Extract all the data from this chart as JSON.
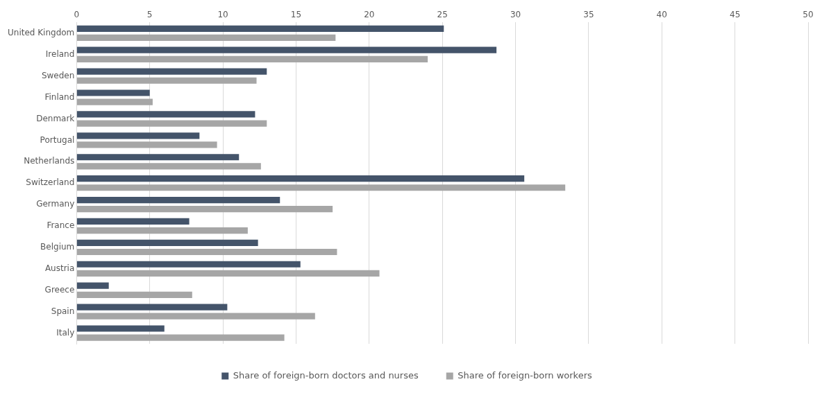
{
  "chart_data": {
    "type": "bar",
    "orientation": "horizontal",
    "categories": [
      "United Kingdom",
      "Ireland",
      "Sweden",
      "Finland",
      "Denmark",
      "Portugal",
      "Netherlands",
      "Switzerland",
      "Germany",
      "France",
      "Belgium",
      "Austria",
      "Greece",
      "Spain",
      "Italy"
    ],
    "series": [
      {
        "name": "Share of foreign-born doctors and nurses",
        "color": "#44546a",
        "values": [
          25.1,
          28.7,
          13.0,
          5.0,
          12.2,
          8.4,
          11.1,
          30.6,
          13.9,
          7.7,
          12.4,
          15.3,
          2.2,
          10.3,
          6.0
        ]
      },
      {
        "name": "Share of foreign-born workers",
        "color": "#a6a6a6",
        "values": [
          17.7,
          24.0,
          12.3,
          5.2,
          13.0,
          9.6,
          12.6,
          33.4,
          17.5,
          11.7,
          17.8,
          20.7,
          7.9,
          16.3,
          14.2
        ]
      }
    ],
    "xlim": [
      0,
      50
    ],
    "xticks": [
      0,
      5,
      10,
      15,
      20,
      25,
      30,
      35,
      40,
      45,
      50
    ],
    "grid": "x",
    "legend": "bottom"
  }
}
